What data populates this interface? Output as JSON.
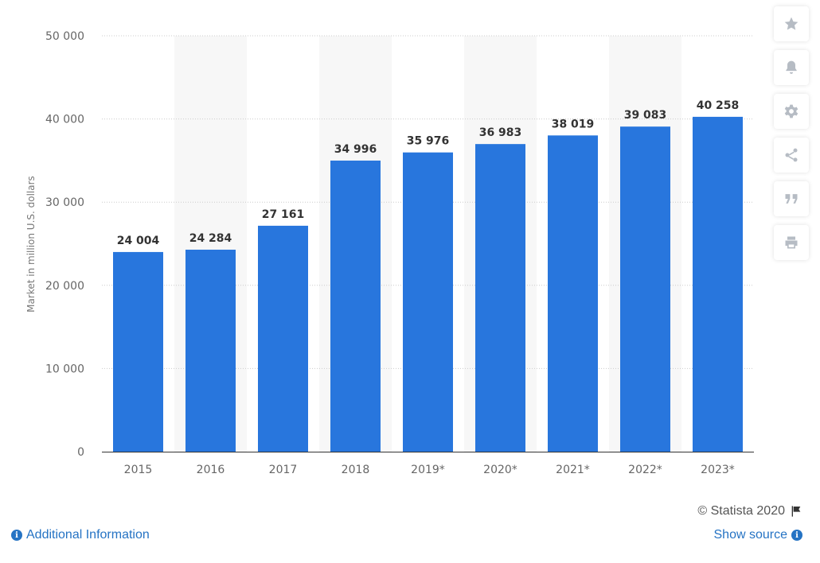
{
  "chart_data": {
    "type": "bar",
    "categories": [
      "2015",
      "2016",
      "2017",
      "2018",
      "2019*",
      "2020*",
      "2021*",
      "2022*",
      "2023*"
    ],
    "values": [
      24004,
      24284,
      27161,
      34996,
      35976,
      36983,
      38019,
      39083,
      40258
    ],
    "value_labels": [
      "24 004",
      "24 284",
      "27 161",
      "34 996",
      "35 976",
      "36 983",
      "38 019",
      "39 083",
      "40 258"
    ],
    "y_ticks": [
      0,
      10000,
      20000,
      30000,
      40000,
      50000
    ],
    "y_tick_labels": [
      "0",
      "10 000",
      "20 000",
      "30 000",
      "40 000",
      "50 000"
    ],
    "ylim": [
      0,
      50000
    ],
    "title": "",
    "xlabel": "",
    "ylabel": "Market in million U.S. dollars",
    "grid": true,
    "bar_color": "#2876dd",
    "band_color": "#f7f7f7"
  },
  "toolbar": {
    "buttons": [
      {
        "name": "favorite",
        "icon": "star-icon"
      },
      {
        "name": "notify",
        "icon": "bell-icon"
      },
      {
        "name": "settings",
        "icon": "gear-icon"
      },
      {
        "name": "share",
        "icon": "share-icon"
      },
      {
        "name": "cite",
        "icon": "quote-icon"
      },
      {
        "name": "print",
        "icon": "print-icon"
      }
    ]
  },
  "footer": {
    "copyright": "© Statista 2020",
    "additional_info": "Additional Information",
    "show_source": "Show source",
    "link_color": "#2573c4"
  }
}
